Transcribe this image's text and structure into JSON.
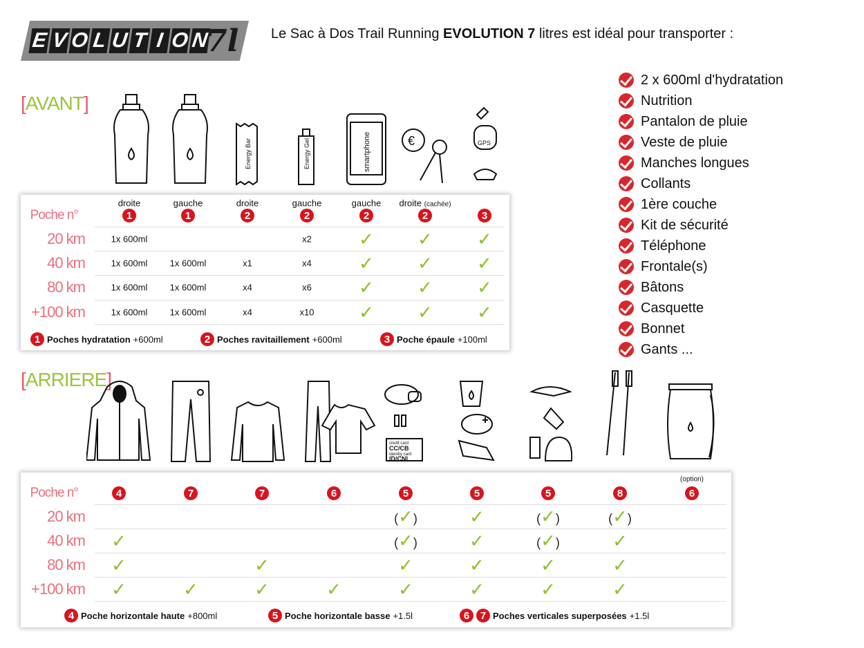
{
  "logo": {
    "text": "EVOLUTION",
    "suffix": "7l"
  },
  "headline": {
    "before": "Le Sac à Dos Trail Running ",
    "bold": "EVOLUTION 7",
    "after": " litres est idéal pour transporter :"
  },
  "checklist": [
    "2 x 600ml d'hydratation",
    "Nutrition",
    "Pantalon de pluie",
    "Veste de pluie",
    "Manches longues",
    "Collants",
    "1ère couche",
    "Kit de sécurité",
    "Téléphone",
    "Frontale(s)",
    "Bâtons",
    "Casquette",
    "Bonnet",
    "Gants ..."
  ],
  "colors": {
    "accent_red": "#d8141e",
    "check_green": "#8fbf2a",
    "section_green": "#9bc43c",
    "distance_pink": "#e8707e"
  },
  "front": {
    "section": "AVANT",
    "icon_labels": {
      "bar": "Energy Bar",
      "gel": "Energy Gel",
      "phone": "smartphone",
      "gps": "GPS"
    },
    "pocket_label": "Poche n°",
    "columns": [
      {
        "side": "droite",
        "side_note": "",
        "pocket": "1"
      },
      {
        "side": "gauche",
        "side_note": "",
        "pocket": "1"
      },
      {
        "side": "droite",
        "side_note": "",
        "pocket": "2"
      },
      {
        "side": "gauche",
        "side_note": "",
        "pocket": "2"
      },
      {
        "side": "gauche",
        "side_note": "",
        "pocket": "2"
      },
      {
        "side": "droite",
        "side_note": "(cachée)",
        "pocket": "2"
      },
      {
        "side": "",
        "side_note": "",
        "pocket": "3"
      }
    ],
    "rows": [
      {
        "distance": "20 km",
        "cells": [
          "1x 600ml",
          "",
          "",
          "x2",
          "check",
          "check",
          "check"
        ]
      },
      {
        "distance": "40 km",
        "cells": [
          "1x 600ml",
          "1x 600ml",
          "x1",
          "x4",
          "check",
          "check",
          "check"
        ]
      },
      {
        "distance": "80 km",
        "cells": [
          "1x 600ml",
          "1x 600ml",
          "x4",
          "x6",
          "check",
          "check",
          "check"
        ]
      },
      {
        "distance": "+100 km",
        "cells": [
          "1x 600ml",
          "1x 600ml",
          "x4",
          "x10",
          "check",
          "check",
          "check"
        ]
      }
    ],
    "legend": [
      {
        "nums": [
          "1"
        ],
        "name": "Poches hydratation",
        "cap": "+600ml"
      },
      {
        "nums": [
          "2"
        ],
        "name": "Poches ravitaillement",
        "cap": "+600ml"
      },
      {
        "nums": [
          "3"
        ],
        "name": "Poche épaule",
        "cap": "+100ml"
      }
    ]
  },
  "back": {
    "section": "ARRIERE",
    "icon_labels": {
      "card1_title": "credit card",
      "card1": "CC/CB",
      "card2_title": "identity card",
      "card2": "ID/CNI"
    },
    "pocket_label": "Poche n°",
    "columns": [
      {
        "note": "",
        "pocket": "4"
      },
      {
        "note": "",
        "pocket": "7"
      },
      {
        "note": "",
        "pocket": "7"
      },
      {
        "note": "",
        "pocket": "6"
      },
      {
        "note": "",
        "pocket": "5"
      },
      {
        "note": "",
        "pocket": "5"
      },
      {
        "note": "",
        "pocket": "5"
      },
      {
        "note": "",
        "pocket": "8"
      },
      {
        "note": "(option)",
        "pocket": "6"
      }
    ],
    "rows": [
      {
        "distance": "20 km",
        "cells": [
          "",
          "",
          "",
          "",
          "optional",
          "check",
          "optional",
          "optional",
          ""
        ]
      },
      {
        "distance": "40 km",
        "cells": [
          "check",
          "",
          "",
          "",
          "optional",
          "check",
          "optional",
          "check",
          ""
        ]
      },
      {
        "distance": "80 km",
        "cells": [
          "check",
          "",
          "check",
          "",
          "check",
          "check",
          "check",
          "check",
          ""
        ]
      },
      {
        "distance": "+100 km",
        "cells": [
          "check",
          "check",
          "check",
          "check",
          "check",
          "check",
          "check",
          "check",
          ""
        ]
      }
    ],
    "legend": [
      {
        "nums": [
          "4"
        ],
        "name": "Poche horizontale haute",
        "cap": "+800ml"
      },
      {
        "nums": [
          "5"
        ],
        "name": "Poche horizontale basse",
        "cap": "+1.5l"
      },
      {
        "nums": [
          "6",
          "7"
        ],
        "name": "Poches verticales superposées",
        "cap": "+1.5l"
      }
    ]
  }
}
